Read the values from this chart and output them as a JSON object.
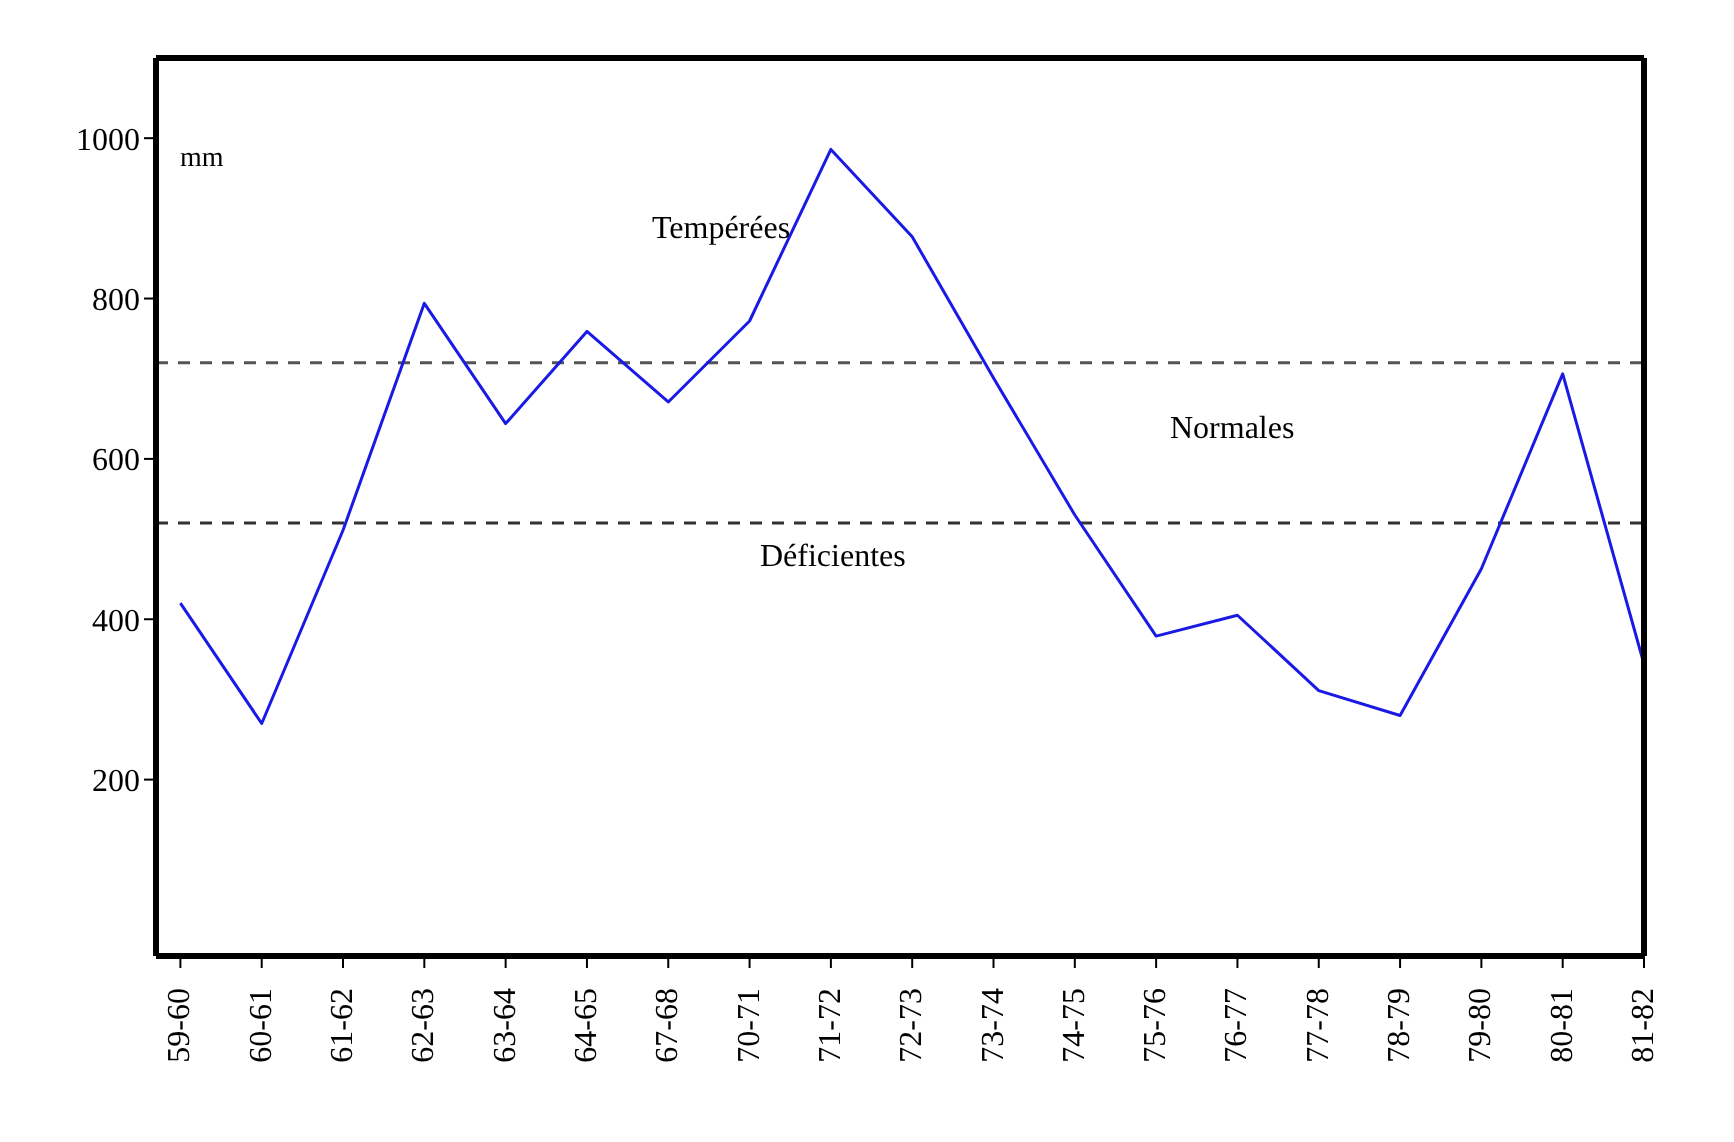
{
  "chart_data": {
    "type": "line",
    "ylabel": "mm",
    "categories": [
      "59-60",
      "60-61",
      "61-62",
      "62-63",
      "63-64",
      "64-65",
      "67-68",
      "70-71",
      "71-72",
      "72-73",
      "73-74",
      "74-75",
      "75-76",
      "76-77",
      "77-78",
      "78-79",
      "79-80",
      "80-81",
      "81-82"
    ],
    "series": [
      {
        "color": "#1a1ae6",
        "values": [
          420,
          270,
          511,
          794,
          644,
          759,
          671,
          772,
          986,
          877,
          701,
          530,
          379,
          405,
          311,
          280,
          463,
          706,
          344
        ]
      }
    ],
    "ylim": [
      -20,
      1100
    ],
    "yticks": [
      200,
      400,
      600,
      800,
      1000
    ],
    "ref_lines": [
      {
        "axis": "y",
        "value": 720,
        "color": "#555555",
        "line_style": "dashed"
      },
      {
        "axis": "y",
        "value": 520,
        "color": "#333333",
        "line_style": "dashed"
      }
    ],
    "annotations": [
      "Tempérées",
      "Normales",
      "Déficientes"
    ],
    "marker": "none",
    "line_style": "solid"
  }
}
